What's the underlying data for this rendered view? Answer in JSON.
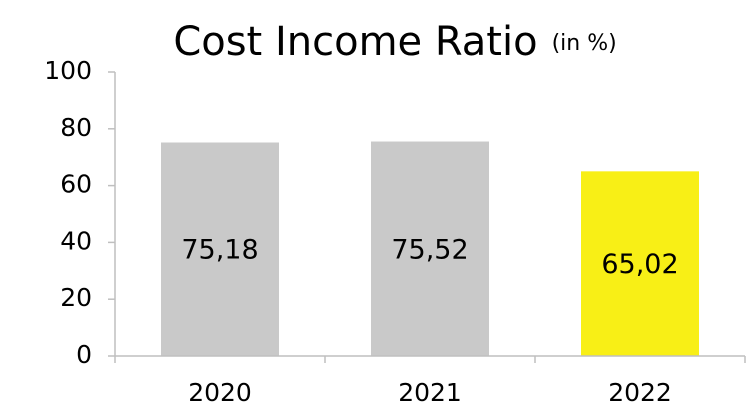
{
  "chart_data": {
    "type": "bar",
    "title": "Cost Income Ratio",
    "subtitle": "(in %)",
    "categories": [
      "2020",
      "2021",
      "2022"
    ],
    "values": [
      75.18,
      75.52,
      65.02
    ],
    "value_labels": [
      "75,18",
      "75,52",
      "65,02"
    ],
    "colors": [
      "#c9c9c9",
      "#c9c9c9",
      "#f8ef16"
    ],
    "ylim": [
      0,
      100
    ],
    "yticks": [
      0,
      20,
      40,
      60,
      80,
      100
    ],
    "grid": false
  }
}
